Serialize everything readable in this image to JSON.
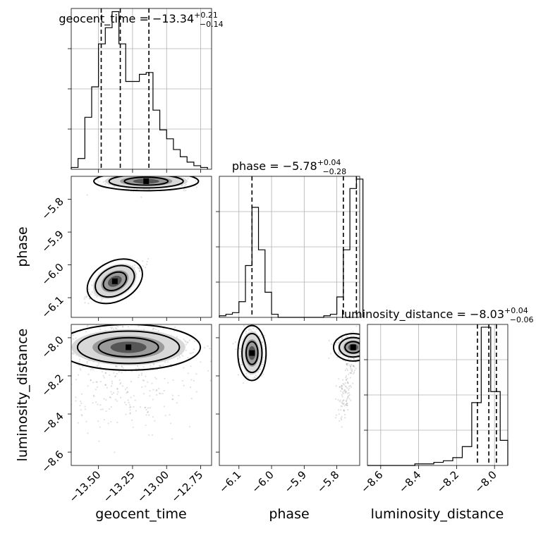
{
  "chart_data": {
    "type": "corner",
    "parameters": [
      "geocent_time",
      "phase",
      "luminosity_distance"
    ],
    "axis_labels": {
      "geocent_time": "geocent_time",
      "phase": "phase",
      "luminosity_distance": "luminosity_distance"
    },
    "ranges": {
      "geocent_time": [
        -13.7,
        -12.67
      ],
      "phase": [
        -6.16,
        -5.73
      ],
      "luminosity_distance": [
        -8.67,
        -7.93
      ]
    },
    "ticks": {
      "geocent_time": [
        -13.5,
        -13.25,
        -13.0,
        -12.75
      ],
      "phase": [
        -6.1,
        -6.0,
        -5.9,
        -5.8
      ],
      "luminosity_distance": [
        -8.6,
        -8.4,
        -8.2,
        -8.0
      ]
    },
    "tick_labels": {
      "geocent_time": [
        "−13.50",
        "−13.25",
        "−13.00",
        "−12.75"
      ],
      "phase": [
        "−6.1",
        "−6.0",
        "−5.9",
        "−5.8"
      ],
      "luminosity_distance": [
        "−8.6",
        "−8.4",
        "−8.2",
        "−8.0"
      ]
    },
    "titles": {
      "geocent_time": {
        "name": "geocent_time",
        "median": "−13.34",
        "plus": "+0.21",
        "minus": "−0.14"
      },
      "phase": {
        "name": "phase",
        "median": "−5.78",
        "plus": "+0.04",
        "minus": "−0.28"
      },
      "luminosity_distance": {
        "name": "luminosity_distance",
        "median": "−8.03",
        "plus": "+0.04",
        "minus": "−0.06"
      }
    },
    "quantiles": {
      "geocent_time": [
        -13.48,
        -13.34,
        -13.13
      ],
      "phase": [
        -6.06,
        -5.78,
        -5.74
      ],
      "luminosity_distance": [
        -8.09,
        -8.03,
        -7.99
      ]
    },
    "histograms": {
      "geocent_time": {
        "bin_edges": [
          -13.7,
          -13.65,
          -13.6,
          -13.55,
          -13.5,
          -13.45,
          -13.4,
          -13.35,
          -13.3,
          -13.25,
          -13.2,
          -13.15,
          -13.1,
          -13.05,
          -13.0,
          -12.95,
          -12.9,
          -12.85,
          -12.8,
          -12.75,
          -12.7
        ],
        "counts": [
          1,
          6,
          29,
          46,
          70,
          79,
          88,
          70,
          49,
          49,
          53,
          54,
          33,
          22,
          17,
          11,
          7,
          4,
          2,
          1
        ]
      },
      "phase": {
        "bin_edges": [
          -6.16,
          -6.14,
          -6.12,
          -6.1,
          -6.08,
          -6.06,
          -6.04,
          -6.02,
          -6.0,
          -5.98,
          -5.96,
          -5.94,
          -5.92,
          -5.9,
          -5.88,
          -5.86,
          -5.84,
          -5.82,
          -5.8,
          -5.78,
          -5.76,
          -5.74,
          -5.72
        ],
        "counts": [
          1,
          2,
          3,
          10,
          33,
          70,
          43,
          16,
          2,
          0,
          0,
          0,
          0,
          0,
          0,
          0,
          1,
          2,
          13,
          43,
          82,
          88
        ]
      },
      "luminosity_distance": {
        "bin_edges": [
          -8.67,
          -8.62,
          -8.57,
          -8.52,
          -8.47,
          -8.42,
          -8.37,
          -8.32,
          -8.27,
          -8.22,
          -8.17,
          -8.12,
          -8.07,
          -8.02,
          -7.97,
          -7.93
        ],
        "counts": [
          0,
          0,
          0,
          0,
          0,
          1,
          1,
          2,
          3,
          5,
          12,
          40,
          88,
          47,
          16
        ]
      }
    },
    "density_modes": [
      {
        "x": "geocent_time",
        "y": "phase",
        "centers": [
          [
            -13.18,
            -5.735
          ],
          [
            -13.4,
            -6.05
          ]
        ]
      },
      {
        "x": "geocent_time",
        "y": "luminosity_distance",
        "centers": [
          [
            -13.3,
            -8.04
          ]
        ]
      },
      {
        "x": "phase",
        "y": "luminosity_distance",
        "centers": [
          [
            -6.06,
            -8.06
          ],
          [
            -5.75,
            -8.04
          ]
        ]
      }
    ]
  }
}
